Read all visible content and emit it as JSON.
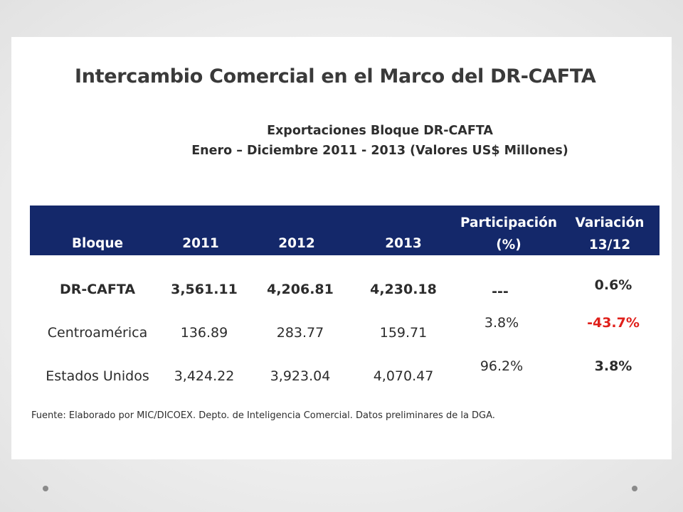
{
  "title": "Intercambio Comercial en el Marco del DR-CAFTA",
  "subtitle_1": "Exportaciones  Bloque DR-CAFTA",
  "subtitle_2": "Enero – Diciembre  2011 - 2013 (Valores US$ Millones)",
  "table": {
    "headers": {
      "bloque": "Bloque",
      "y2011": "2011",
      "y2012": "2012",
      "y2013": "2013",
      "participacion_1": "Participación",
      "participacion_2": "(%)",
      "variacion_1": "Variación",
      "variacion_2": "13/12"
    },
    "rows": [
      {
        "bloque": "DR-CAFTA",
        "y2011": "3,561.11",
        "y2012": "4,206.81",
        "y2013": "4,230.18",
        "participacion": "---",
        "variacion": "0.6%"
      },
      {
        "bloque": "Centroamérica",
        "y2011": "136.89",
        "y2012": "283.77",
        "y2013": "159.71",
        "participacion": "3.8%",
        "variacion": "-43.7%"
      },
      {
        "bloque": "Estados Unidos",
        "y2011": "3,424.22",
        "y2012": "3,923.04",
        "y2013": "4,070.47",
        "participacion": "96.2%",
        "variacion": "3.8%"
      }
    ]
  },
  "footer": "Fuente: Elaborado por MIC/DICOEX. Depto. de Inteligencia Comercial. Datos preliminares de la DGA.",
  "colors": {
    "header_bg": "#14286a",
    "negative": "#e0201b"
  }
}
